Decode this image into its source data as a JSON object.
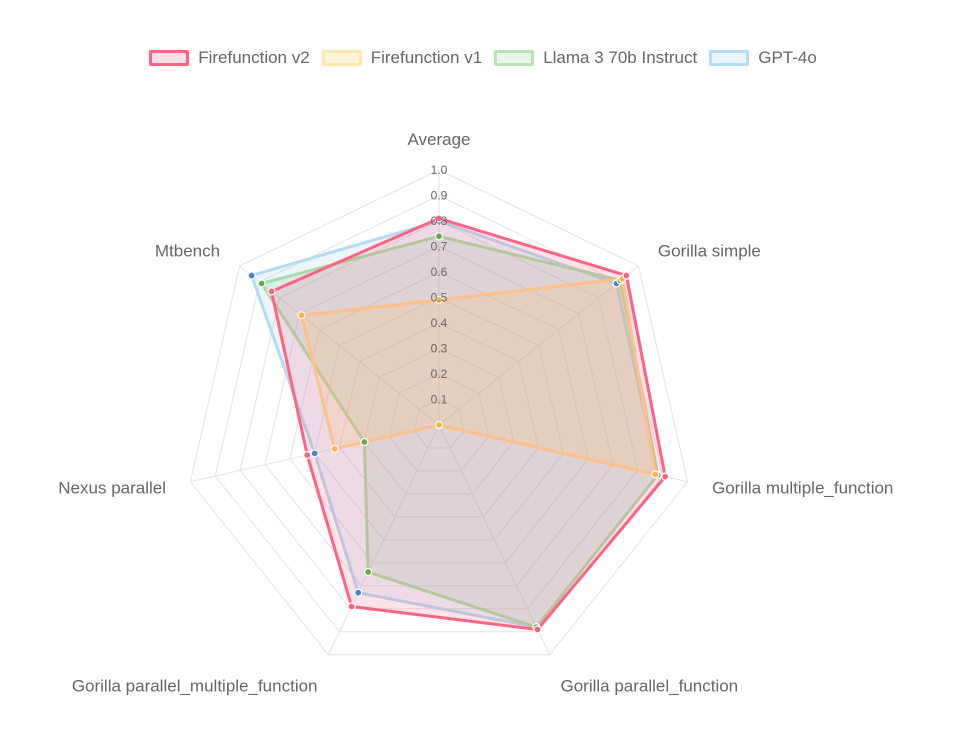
{
  "chart_data": {
    "type": "radar",
    "axes": [
      "Average",
      "Gorilla simple",
      "Gorilla multiple_function",
      "Gorilla parallel_function",
      "Gorilla parallel_multiple_function",
      "Nexus parallel",
      "Mtbench"
    ],
    "rlim": [
      0,
      1.0
    ],
    "ticks": [
      "0.1",
      "0.2",
      "0.3",
      "0.4",
      "0.5",
      "0.6",
      "0.7",
      "0.8",
      "0.9",
      "1.0"
    ],
    "grid": true,
    "legend_position": "top",
    "series": [
      {
        "name": "Firefunction v2",
        "color": "#ff6384",
        "values": [
          0.81,
          0.94,
          0.91,
          0.89,
          0.79,
          0.53,
          0.84
        ]
      },
      {
        "name": "Firefunction v1",
        "color": "#ffcd56",
        "values": [
          0.49,
          0.92,
          0.87,
          0.0,
          0.0,
          0.42,
          0.69
        ]
      },
      {
        "name": "Llama 3 70b Instruct",
        "color": "#6cc26c",
        "values": [
          0.74,
          0.91,
          0.88,
          0.88,
          0.64,
          0.3,
          0.89
        ]
      },
      {
        "name": "GPT-4o",
        "color": "#8fc8ee",
        "values": [
          0.8,
          0.89,
          0.88,
          0.88,
          0.73,
          0.5,
          0.94
        ]
      }
    ]
  }
}
